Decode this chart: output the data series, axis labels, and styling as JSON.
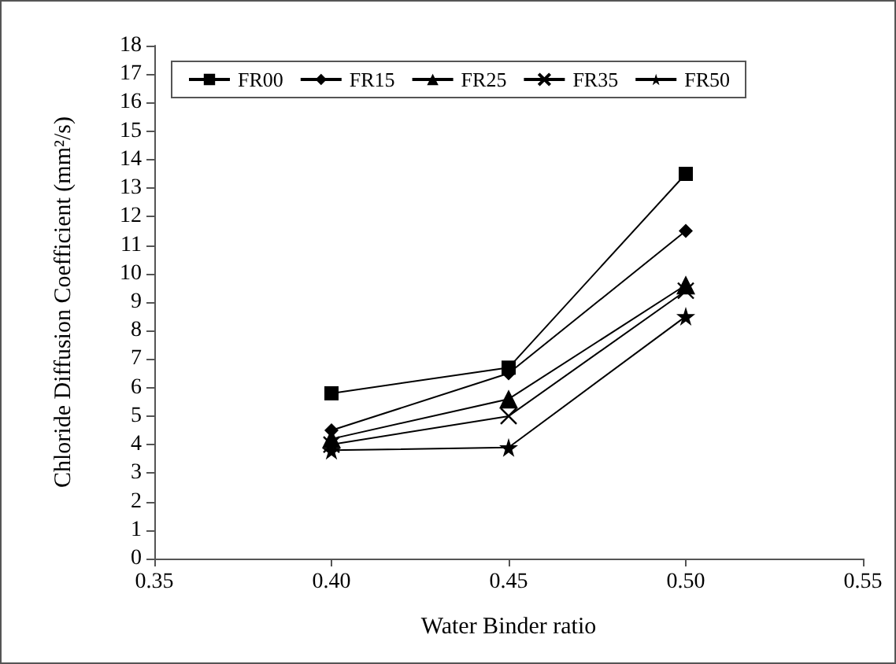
{
  "chart_data": {
    "type": "line",
    "xlabel": "Water Binder ratio",
    "ylabel": "Chloride Diffusion Coefficient (mm²/s)",
    "x": [
      0.4,
      0.45,
      0.5
    ],
    "series": [
      {
        "name": "FR00",
        "color": "#000000",
        "marker": "square",
        "values": [
          5.8,
          6.7,
          13.5
        ]
      },
      {
        "name": "FR15",
        "color": "#000000",
        "marker": "diamond",
        "values": [
          4.5,
          6.5,
          11.5
        ]
      },
      {
        "name": "FR25",
        "color": "#000000",
        "marker": "triangle",
        "values": [
          4.2,
          5.6,
          9.6
        ]
      },
      {
        "name": "FR35",
        "color": "#000000",
        "marker": "cross",
        "values": [
          4.0,
          5.0,
          9.4
        ]
      },
      {
        "name": "FR50",
        "color": "#000000",
        "marker": "star",
        "values": [
          3.8,
          3.9,
          8.5
        ]
      }
    ],
    "xlim": [
      0.35,
      0.55
    ],
    "xticks": [
      {
        "value": 0.35,
        "label": "0.35"
      },
      {
        "value": 0.4,
        "label": "0.40"
      },
      {
        "value": 0.45,
        "label": "0.45"
      },
      {
        "value": 0.5,
        "label": "0.50"
      },
      {
        "value": 0.55,
        "label": "0.55"
      }
    ],
    "ylim": [
      0,
      18
    ],
    "yticks": [
      0,
      1,
      2,
      3,
      4,
      5,
      6,
      7,
      8,
      9,
      10,
      11,
      12,
      13,
      14,
      15,
      16,
      17,
      18
    ],
    "grid": false,
    "legend": "top",
    "line_style": "solid"
  }
}
